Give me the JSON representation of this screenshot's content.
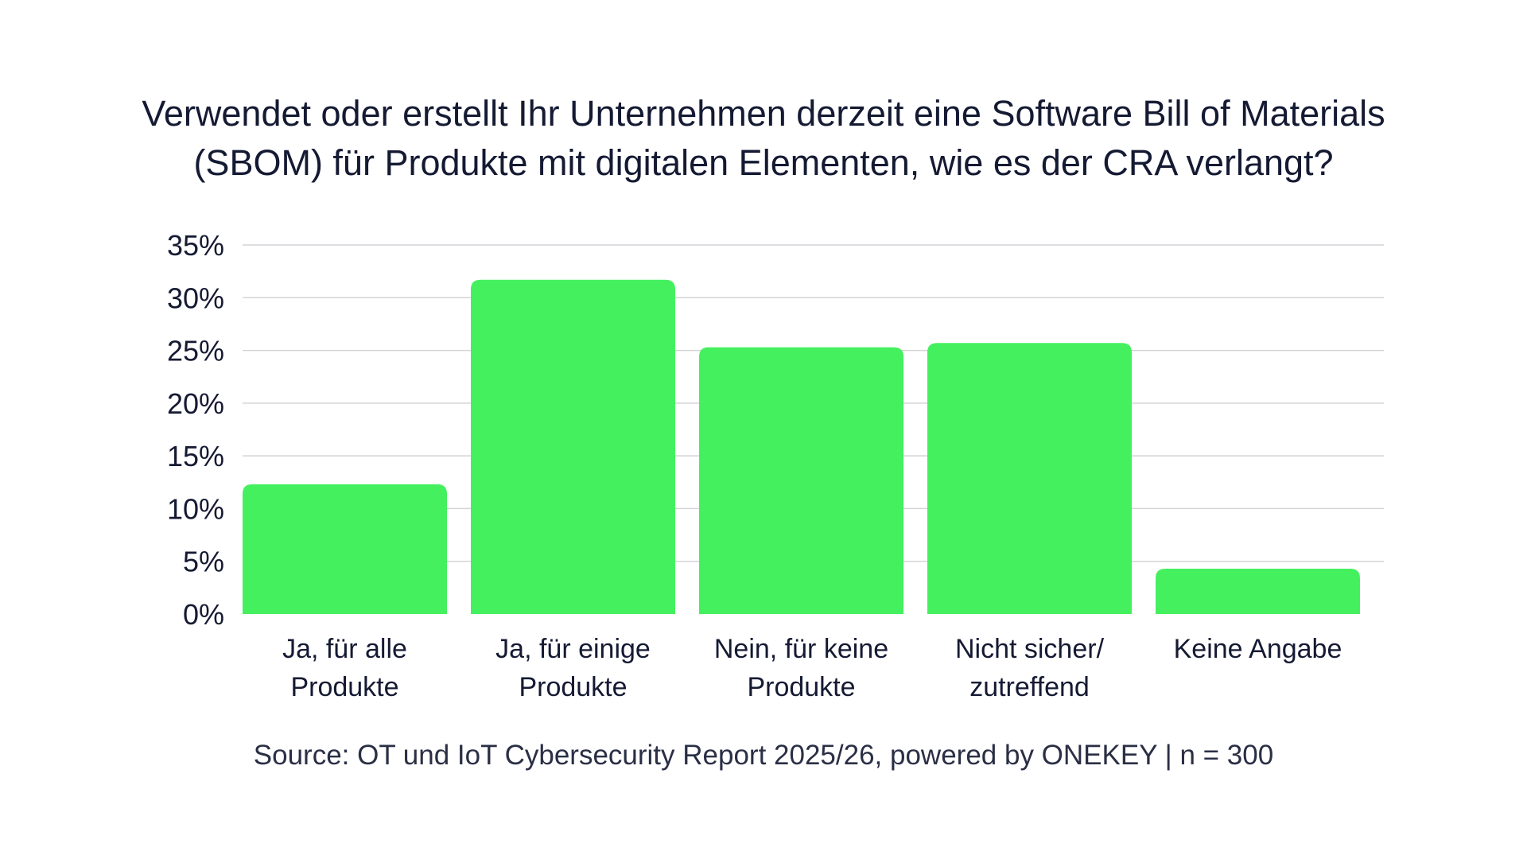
{
  "chart_data": {
    "type": "bar",
    "title_lines": [
      "Verwendet oder erstellt Ihr Unternehmen derzeit eine Software Bill of Materials",
      "(SBOM) für Produkte mit digitalen Elementen, wie es der CRA verlangt?"
    ],
    "categories": [
      [
        "Ja, für alle",
        "Produkte"
      ],
      [
        "Ja, für einige",
        "Produkte"
      ],
      [
        "Nein, für keine",
        "Produkte"
      ],
      [
        "Nicht sicher/",
        "zutreffend"
      ],
      [
        "Keine Angabe"
      ]
    ],
    "values": [
      12.3,
      31.7,
      25.3,
      25.7,
      4.3
    ],
    "ylim": [
      0,
      35
    ],
    "yticks": [
      0,
      5,
      10,
      15,
      20,
      25,
      30,
      35
    ],
    "ytick_labels": [
      "0%",
      "5%",
      "10%",
      "15%",
      "20%",
      "25%",
      "30%",
      "35%"
    ],
    "xlabel": "",
    "ylabel": "",
    "grid": true,
    "legend": "none",
    "bar_color": "#45f05f",
    "grid_color": "#d4d4d8",
    "source": "Source: OT und IoT Cybersecurity Report 2025/26, powered by ONEKEY | n = 300"
  }
}
